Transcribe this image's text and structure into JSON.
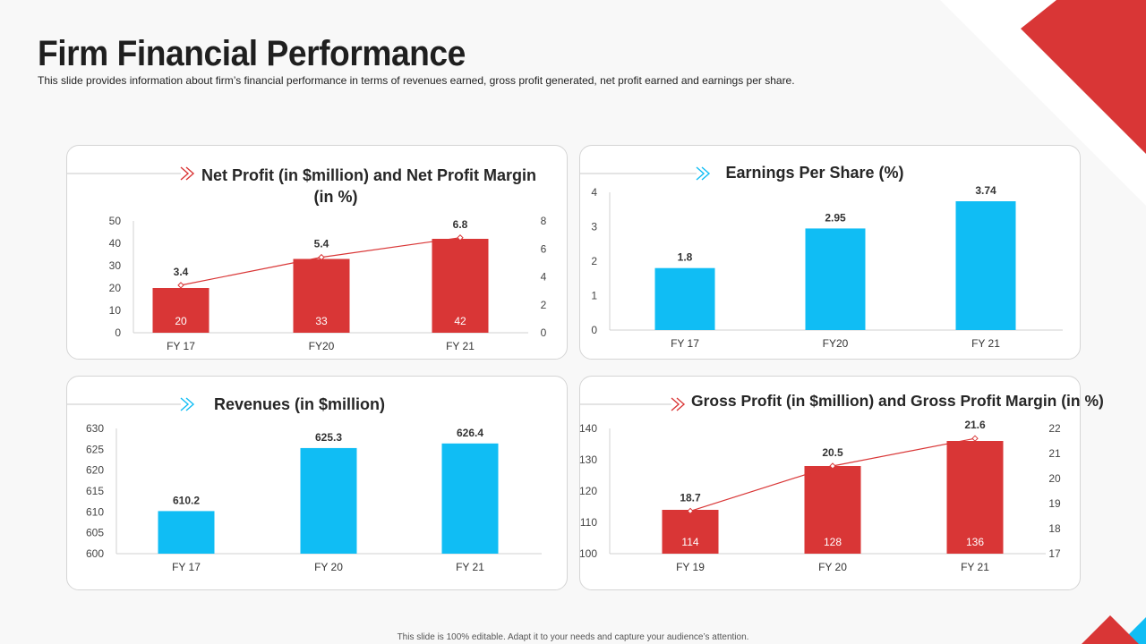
{
  "page": {
    "title": "Firm Financial Performance",
    "subtitle": "This slide provides information about firm’s financial performance in terms of revenues earned, gross profit generated, net profit earned and earnings per share.",
    "footer": "This slide is 100% editable. Adapt it to your needs and capture your audience’s attention."
  },
  "colors": {
    "red": "#d93636",
    "blue": "#10bdf4",
    "line": "#d93636"
  },
  "chart_data": [
    {
      "id": "net-profit",
      "type": "bar",
      "title": "Net Profit (in $million) and Net Profit Margin (in %)",
      "title_lines": [
        "Net Profit (in $million) and Net Profit Margin",
        "(in %)"
      ],
      "icon_color": "red",
      "bar_color": "red",
      "categories": [
        "FY 17",
        "FY20",
        "FY 21"
      ],
      "series": [
        {
          "name": "Net Profit (in $million)",
          "values": [
            20,
            33,
            42
          ]
        },
        {
          "name": "Net Profit Margin (in %)",
          "values": [
            3.4,
            5.4,
            6.8
          ],
          "axis": "right",
          "type": "line"
        }
      ],
      "ylim": [
        0,
        50
      ],
      "yticks": [
        0,
        10,
        20,
        30,
        40,
        50
      ],
      "y2lim": [
        0,
        8
      ],
      "y2ticks": [
        0,
        2,
        4,
        6,
        8
      ],
      "line_labels": [
        "3.4",
        "5.4",
        "6.8"
      ]
    },
    {
      "id": "eps",
      "type": "bar",
      "title": "Earnings Per Share (%)",
      "title_lines": [
        "Earnings Per Share (%)"
      ],
      "icon_color": "blue",
      "bar_color": "blue",
      "categories": [
        "FY 17",
        "FY20",
        "FY 21"
      ],
      "series": [
        {
          "name": "Earnings Per Share (%)",
          "values": [
            1.8,
            2.95,
            3.74
          ]
        }
      ],
      "ylim": [
        0,
        4
      ],
      "yticks": [
        0,
        1,
        2,
        3,
        4
      ],
      "bar_labels": [
        "1.8",
        "2.95",
        "3.74"
      ]
    },
    {
      "id": "revenues",
      "type": "bar",
      "title": "Revenues (in $million)",
      "title_lines": [
        "Revenues (in $million)"
      ],
      "icon_color": "blue",
      "bar_color": "blue",
      "categories": [
        "FY 17",
        "FY 20",
        "FY 21"
      ],
      "series": [
        {
          "name": "Revenues (in $million)",
          "values": [
            610.2,
            625.3,
            626.4
          ]
        }
      ],
      "ylim": [
        600,
        630
      ],
      "yticks": [
        600,
        605,
        610,
        615,
        620,
        625,
        630
      ],
      "bar_labels": [
        "610.2",
        "625.3",
        "626.4"
      ]
    },
    {
      "id": "gross-profit",
      "type": "bar",
      "title": "Gross Profit (in $million) and Gross Profit Margin (in %)",
      "title_lines": [
        "Gross Profit (in $million) and Gross Profit Margin (in %)"
      ],
      "icon_color": "red",
      "bar_color": "red",
      "categories": [
        "FY 19",
        "FY 20",
        "FY 21"
      ],
      "series": [
        {
          "name": "Gross Profit (in $million)",
          "values": [
            114,
            128,
            136
          ]
        },
        {
          "name": "Gross Profit Margin (in %)",
          "values": [
            18.7,
            20.5,
            21.6
          ],
          "axis": "right",
          "type": "line"
        }
      ],
      "ylim": [
        100,
        140
      ],
      "yticks": [
        100,
        110,
        120,
        130,
        140
      ],
      "y2lim": [
        17,
        22
      ],
      "y2ticks": [
        17,
        18,
        19,
        20,
        21,
        22
      ],
      "line_labels": [
        "18.7",
        "20.5",
        "21.6"
      ]
    }
  ]
}
